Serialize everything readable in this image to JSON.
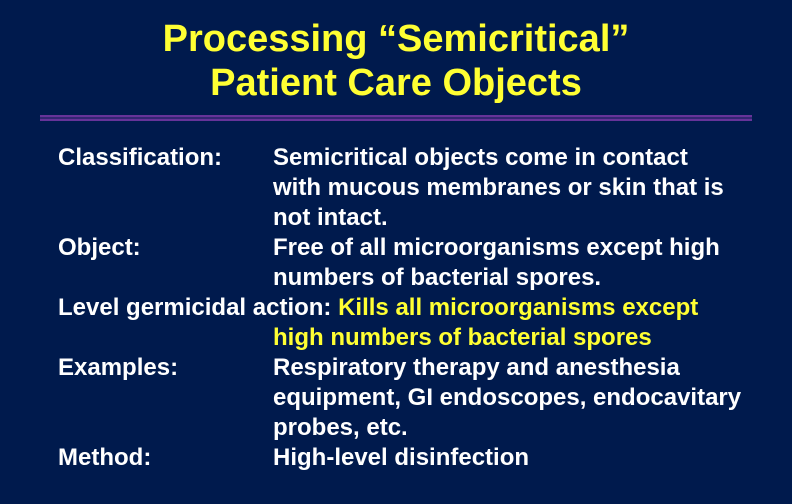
{
  "colors": {
    "background": "#001a4d",
    "title": "#ffff33",
    "divider": "#663399",
    "body_text": "#ffffff",
    "highlight": "#ffff33"
  },
  "typography": {
    "title_fontsize": 38,
    "body_fontsize": 24,
    "font_family": "Arial",
    "font_weight": "bold"
  },
  "title_line1": "Processing “Semicritical”",
  "title_line2": "Patient Care Objects",
  "rows": {
    "classification": {
      "label": "Classification:",
      "value": "Semicritical objects come in contact with mucous membranes or skin that is not intact."
    },
    "object": {
      "label": "Object:",
      "value": "Free of all microorganisms except high numbers of bacterial spores."
    },
    "level": {
      "label": "Level germicidal action:",
      "value": "Kills all microorganisms except high numbers of bacterial spores"
    },
    "examples": {
      "label": "Examples:",
      "value": "Respiratory therapy and anesthesia equipment, GI endoscopes, endocavitary probes, etc."
    },
    "method": {
      "label": "Method:",
      "value": "High-level disinfection"
    }
  }
}
